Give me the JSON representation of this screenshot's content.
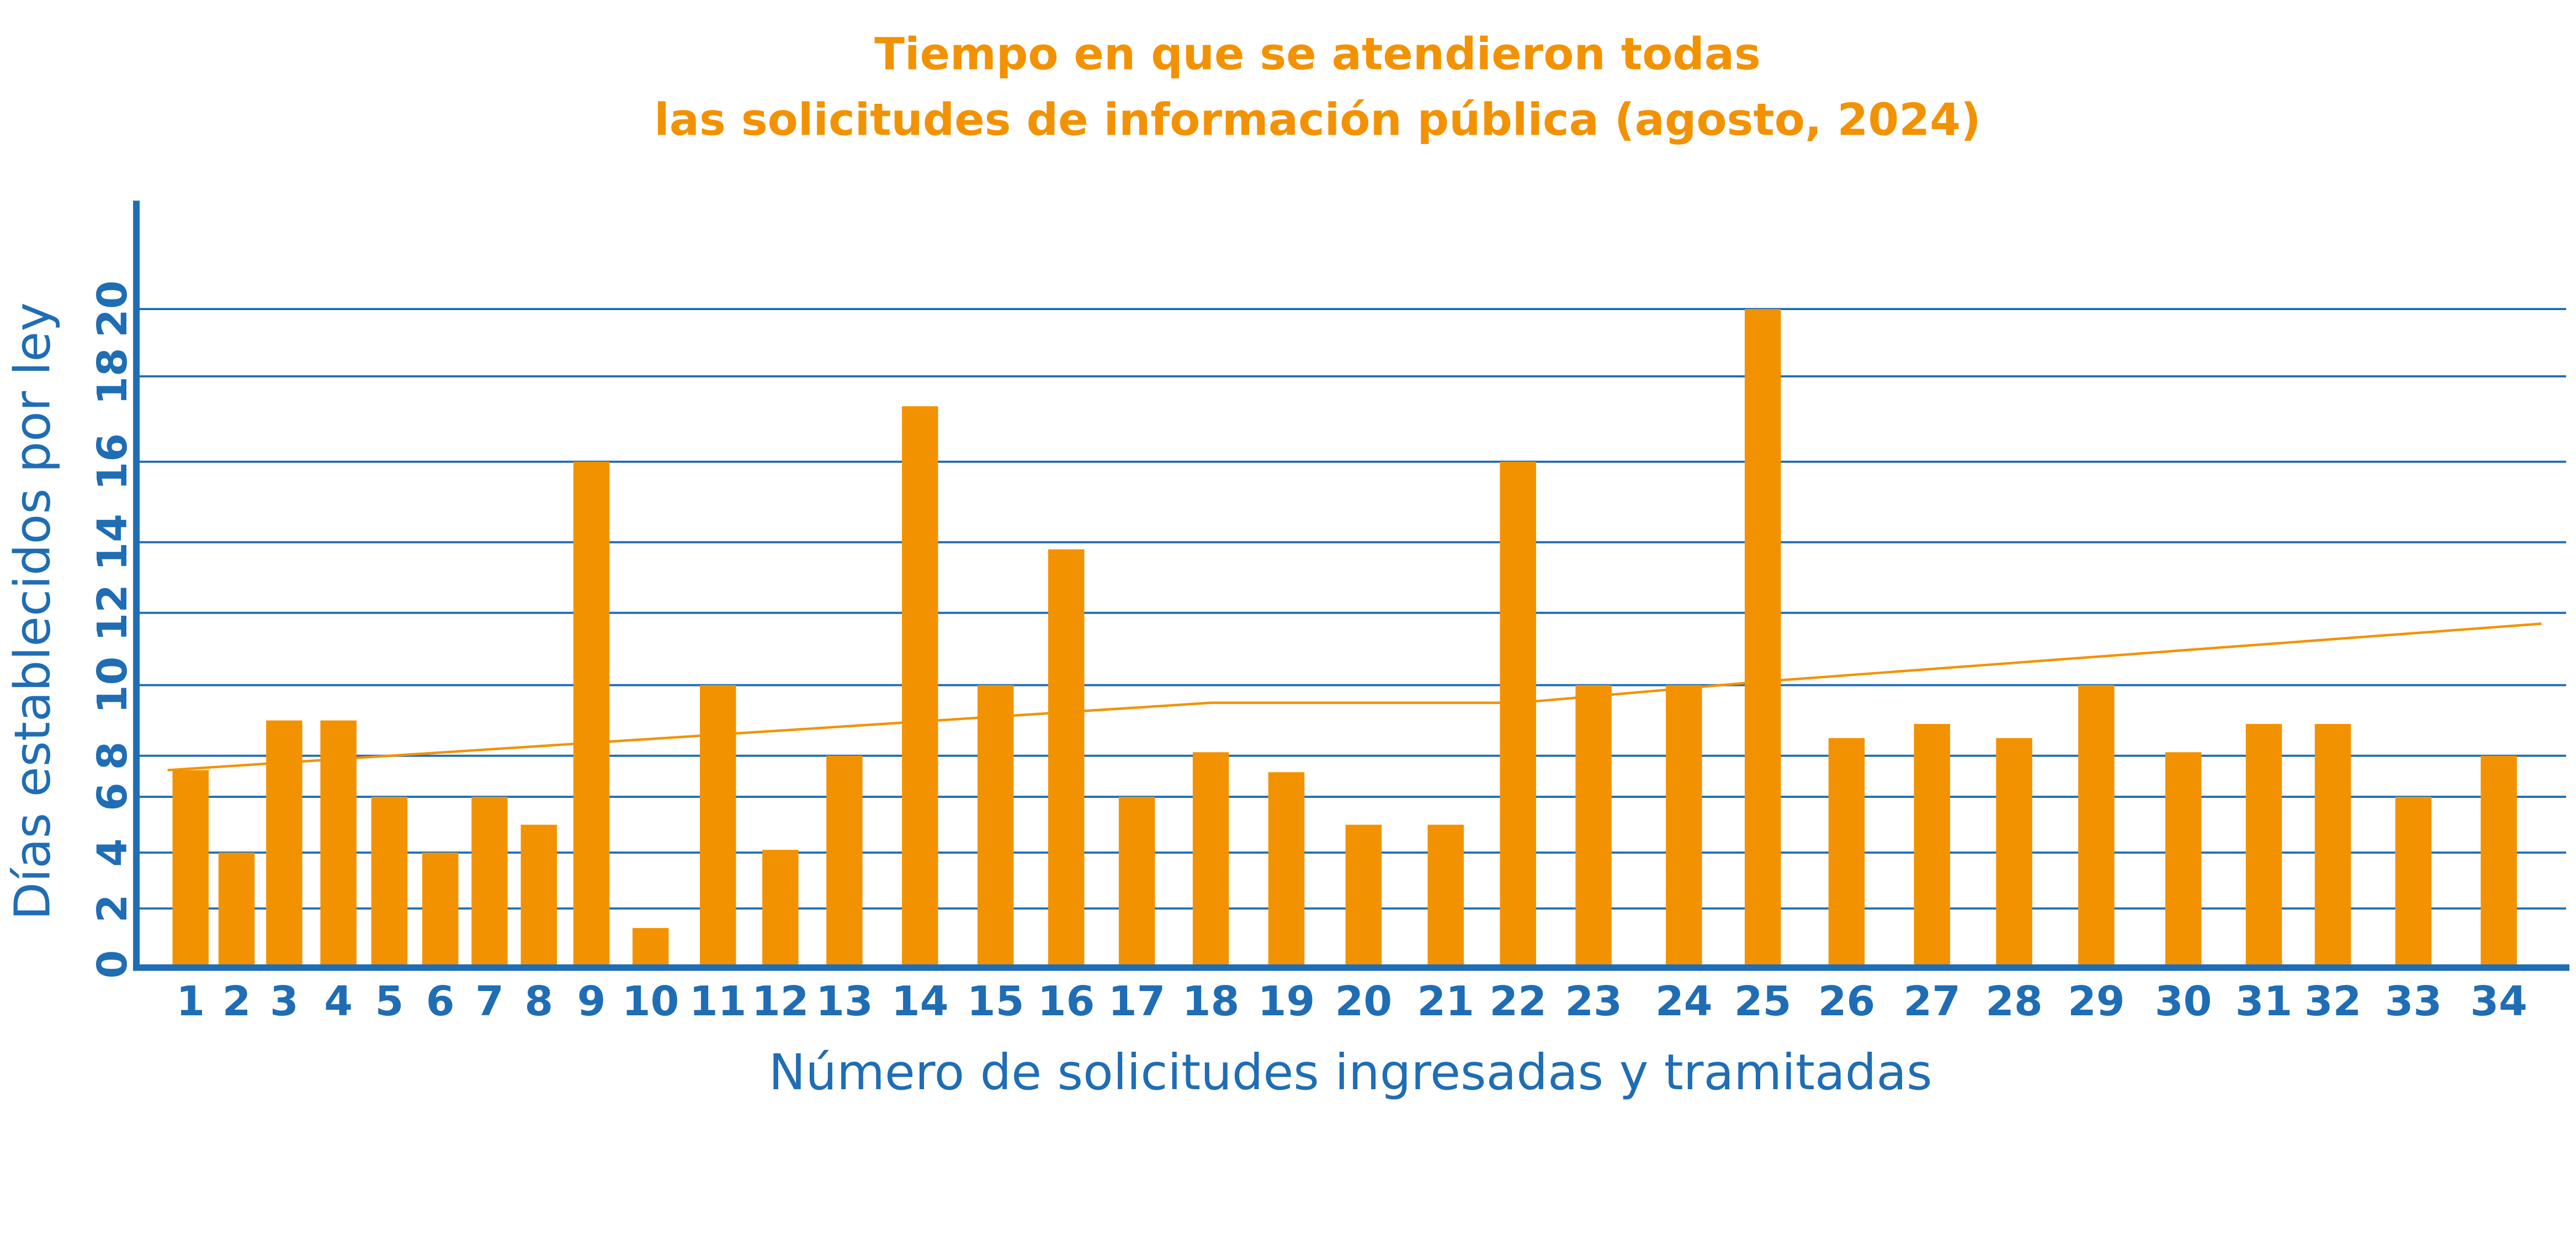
{
  "chart_data": {
    "type": "bar",
    "title": [
      "Tiempo en que se atendieron todas",
      "las solicitudes de información pública (agosto, 2024)"
    ],
    "xlabel": "Número de solicitudes ingresadas y tramitadas",
    "ylabel": "Días establecidos por ley",
    "ylim": [
      0,
      20
    ],
    "yticks": [
      "0",
      "2",
      "4",
      "6",
      "8",
      "10",
      "12",
      "14",
      "16",
      "18",
      "20"
    ],
    "grid": true,
    "categories": [
      "1",
      "2",
      "3",
      "4",
      "5",
      "6",
      "7",
      "8",
      "9",
      "10",
      "11",
      "12",
      "13",
      "14",
      "15",
      "16",
      "17",
      "18",
      "19",
      "20",
      "21",
      "22",
      "23",
      "24",
      "25",
      "26",
      "27",
      "28",
      "29",
      "30",
      "31",
      "32",
      "33",
      "34"
    ],
    "values": [
      7.3,
      4,
      9,
      9,
      6,
      4,
      6,
      5,
      16,
      1.3,
      10,
      4.1,
      8,
      17.3,
      10,
      13.8,
      6,
      8.1,
      7.2,
      5,
      5,
      16,
      10,
      10,
      20,
      8.5,
      8.9,
      8.5,
      10,
      8.1,
      8.9,
      8.9,
      6,
      8
    ],
    "trend": [
      {
        "x": 0.5,
        "y": 7.3
      },
      {
        "x": 18,
        "y": 9.5
      },
      {
        "x": 22,
        "y": 9.5
      },
      {
        "x": 25,
        "y": 10.1
      },
      {
        "x": 34.5,
        "y": 11.7
      }
    ],
    "colors": {
      "bar": "#F39200",
      "axis": "#1F6DB5",
      "grid": "#1F6DB5",
      "trend": "#F39200"
    }
  }
}
